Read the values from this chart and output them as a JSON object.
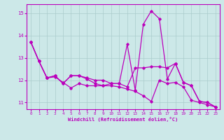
{
  "xlabel": "Windchill (Refroidissement éolien,°C)",
  "xlim": [
    -0.5,
    23.5
  ],
  "ylim": [
    10.7,
    15.4
  ],
  "yticks": [
    11,
    12,
    13,
    14,
    15
  ],
  "xticks": [
    0,
    1,
    2,
    3,
    4,
    5,
    6,
    7,
    8,
    9,
    10,
    11,
    12,
    13,
    14,
    15,
    16,
    17,
    18,
    19,
    20,
    21,
    22,
    23
  ],
  "line_color": "#bb00bb",
  "bg_color": "#cce8e8",
  "grid_color": "#aacccc",
  "line1_x": [
    0,
    1,
    2,
    3,
    4,
    5,
    6,
    7,
    8,
    9,
    10,
    11,
    12,
    13,
    14,
    15,
    16,
    17,
    18,
    19,
    20,
    21,
    22,
    23
  ],
  "line1_y": [
    13.7,
    12.85,
    12.1,
    12.15,
    11.9,
    11.65,
    11.85,
    11.75,
    11.75,
    11.75,
    11.75,
    11.7,
    11.6,
    11.5,
    11.3,
    11.05,
    12.0,
    11.85,
    11.9,
    11.7,
    11.1,
    11.0,
    10.9,
    10.8
  ],
  "line2_x": [
    0,
    1,
    2,
    3,
    4,
    5,
    6,
    7,
    8,
    9,
    10,
    11,
    12,
    13,
    14,
    15,
    16,
    17,
    18,
    19,
    20,
    21,
    22,
    23
  ],
  "line2_y": [
    13.7,
    12.85,
    12.1,
    12.2,
    11.85,
    12.2,
    12.2,
    12.1,
    12.0,
    12.0,
    11.85,
    11.85,
    13.6,
    11.55,
    14.5,
    15.1,
    14.75,
    12.05,
    12.75,
    11.9,
    11.75,
    11.05,
    11.0,
    10.8
  ],
  "line3_x": [
    0,
    1,
    2,
    3,
    4,
    5,
    6,
    7,
    8,
    9,
    10,
    11,
    12,
    13,
    14,
    15,
    16,
    17,
    18,
    19,
    20,
    21,
    22,
    23
  ],
  "line3_y": [
    13.7,
    12.85,
    12.1,
    12.2,
    11.85,
    12.2,
    12.2,
    12.05,
    11.85,
    11.75,
    11.85,
    11.85,
    11.7,
    12.55,
    12.55,
    12.6,
    12.6,
    12.55,
    12.75,
    11.9,
    11.75,
    11.05,
    11.0,
    10.8
  ]
}
